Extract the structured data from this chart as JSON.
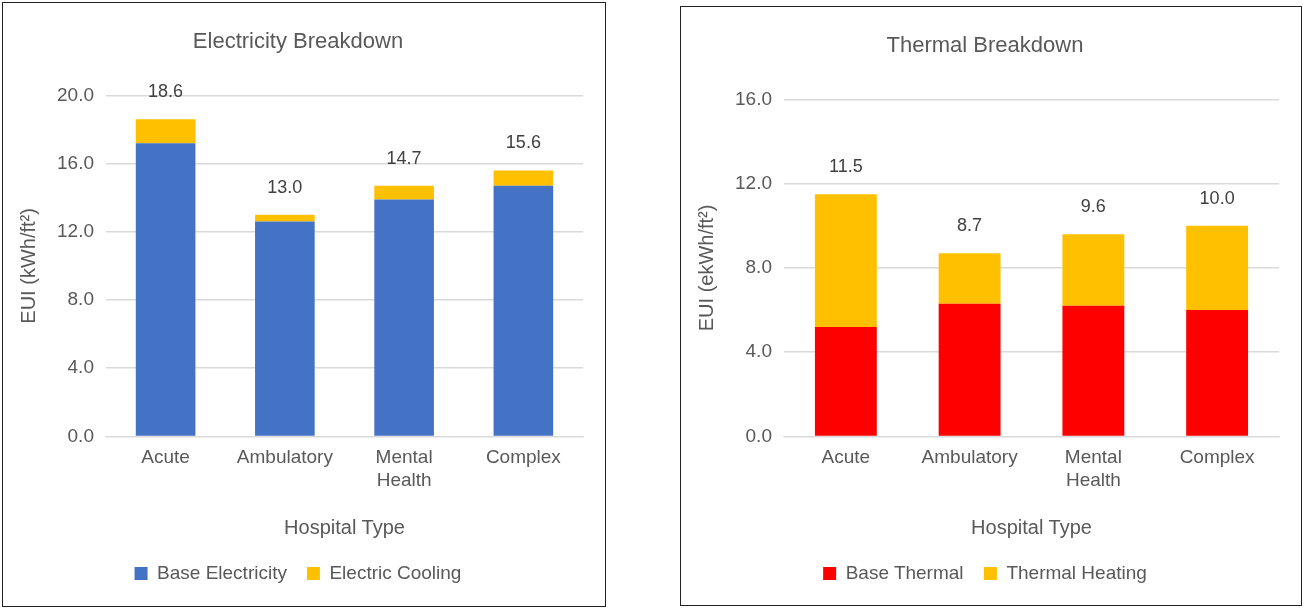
{
  "chart_data": [
    {
      "type": "bar",
      "title": "Electricity Breakdown",
      "xlabel": "Hospital Type",
      "ylabel": "EUI (kWh/ft²)",
      "categories": [
        "Acute",
        "Ambulatory",
        "Mental Health",
        "Complex"
      ],
      "stacked": true,
      "series": [
        {
          "name": "Base Electricity",
          "color": "#4472c4",
          "values": [
            17.2,
            12.6,
            13.9,
            14.7
          ]
        },
        {
          "name": "Electric Cooling",
          "color": "#ffc000",
          "values": [
            1.4,
            0.4,
            0.8,
            0.9
          ]
        }
      ],
      "totals": [
        "18.6",
        "13.0",
        "14.7",
        "15.6"
      ],
      "ylim": [
        0,
        20
      ],
      "yticks": [
        {
          "value": 0,
          "label": "0.0"
        },
        {
          "value": 4,
          "label": "4.0"
        },
        {
          "value": 8,
          "label": "8.0"
        },
        {
          "value": 12,
          "label": "12.0"
        },
        {
          "value": 16,
          "label": "16.0"
        },
        {
          "value": 20,
          "label": "20.0"
        }
      ],
      "grid": "y",
      "legend": "bottom"
    },
    {
      "type": "bar",
      "title": "Thermal Breakdown",
      "xlabel": "Hospital Type",
      "ylabel": "EUI (ekWh/ft²)",
      "categories": [
        "Acute",
        "Ambulatory",
        "Mental Health",
        "Complex"
      ],
      "stacked": true,
      "series": [
        {
          "name": "Base Thermal",
          "color": "#ff0000",
          "values": [
            5.2,
            6.3,
            6.2,
            6.0
          ]
        },
        {
          "name": "Thermal Heating",
          "color": "#ffc000",
          "values": [
            6.3,
            2.4,
            3.4,
            4.0
          ]
        }
      ],
      "totals": [
        "11.5",
        "8.7",
        "9.6",
        "10.0"
      ],
      "ylim": [
        0,
        16
      ],
      "yticks": [
        {
          "value": 0,
          "label": "0.0"
        },
        {
          "value": 4,
          "label": "4.0"
        },
        {
          "value": 8,
          "label": "8.0"
        },
        {
          "value": 12,
          "label": "12.0"
        },
        {
          "value": 16,
          "label": "16.0"
        }
      ],
      "grid": "y",
      "legend": "bottom"
    }
  ]
}
